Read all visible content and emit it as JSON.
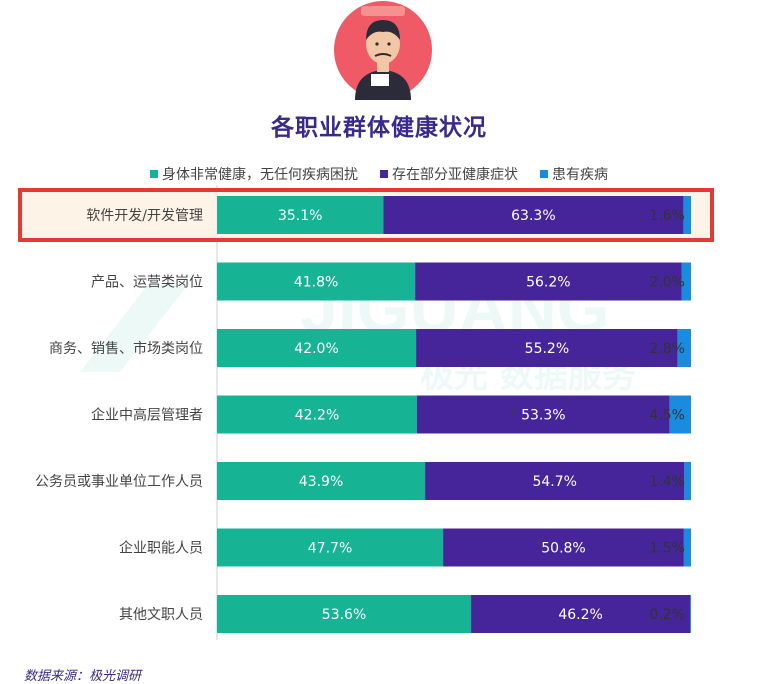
{
  "title": "各职业群体健康状况",
  "source": "数据来源：极光调研",
  "watermark": {
    "latin": "JIGUANG",
    "cn": "极光 数据服务"
  },
  "colors": {
    "healthy": "#16b495",
    "partial": "#46259b",
    "disease": "#1a8ce0",
    "highlight": "#e53935",
    "highlight_bg": "#fdf3e7"
  },
  "chart_data": {
    "type": "bar",
    "orientation": "horizontal-stacked-100",
    "categories": [
      "软件开发/开发管理",
      "产品、运营类岗位",
      "商务、销售、市场类岗位",
      "企业中高层管理者",
      "公务员或事业单位工作人员",
      "企业职能人员",
      "其他文职人员"
    ],
    "series": [
      {
        "name": "身体非常健康，无任何疾病困扰",
        "values": [
          35.1,
          41.8,
          42.0,
          42.2,
          43.9,
          47.7,
          53.6
        ],
        "labels": [
          "35.1%",
          "41.8%",
          "42.0%",
          "42.2%",
          "43.9%",
          "47.7%",
          "53.6%"
        ]
      },
      {
        "name": "存在部分亚健康症状",
        "values": [
          63.3,
          56.2,
          55.2,
          53.3,
          54.7,
          50.8,
          46.2
        ],
        "labels": [
          "63.3%",
          "56.2%",
          "55.2%",
          "53.3%",
          "54.7%",
          "50.8%",
          "46.2%"
        ]
      },
      {
        "name": "患有疾病",
        "values": [
          1.6,
          2.0,
          2.8,
          4.5,
          1.4,
          1.5,
          0.2
        ],
        "labels": [
          "1.6%",
          "2.0%",
          "2.8%",
          "4.5%",
          "1.4%",
          "1.5%",
          "0.2%"
        ]
      }
    ],
    "highlighted_category": "软件开发/开发管理",
    "legend_position": "top",
    "grid": false
  }
}
